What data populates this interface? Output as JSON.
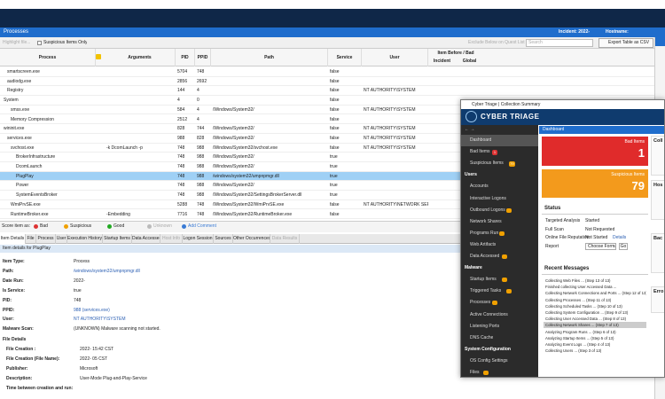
{
  "app": {
    "title": "Processes",
    "incident": "Incident: 2022-",
    "hostname": "Hostname:"
  },
  "toolbar": {
    "highlight": "Highlight file...",
    "suspicious_only": "Suspicious Items Only",
    "exclude": "Exclude Below on Quest List",
    "search": "Search",
    "export": "Export Table as CSV"
  },
  "table": {
    "columns": [
      "Process",
      "Arguments",
      "PID",
      "PPID",
      "Path",
      "Service",
      "User"
    ],
    "group": "Item Before / Bad",
    "subcolumns": [
      "Incident",
      "Global"
    ],
    "rows": [
      [
        "smartscreen.exe",
        "",
        "5704",
        "748",
        "",
        "false",
        ""
      ],
      [
        "audiodg.exe",
        "",
        "2856",
        "2692",
        "",
        "false",
        ""
      ],
      [
        "Registry",
        "",
        "144",
        "4",
        "",
        "false",
        "NT AUTHORITY\\SYSTEM"
      ],
      [
        "System",
        "",
        "4",
        "0",
        "",
        "false",
        ""
      ],
      [
        "smss.exe",
        "",
        "584",
        "4",
        "/Windows/System32/",
        "false",
        "NT AUTHORITY\\SYSTEM"
      ],
      [
        "Memory Compression",
        "",
        "2512",
        "4",
        "",
        "false",
        ""
      ],
      [
        "wininit.exe",
        "",
        "828",
        "744",
        "/Windows/System32/",
        "false",
        "NT AUTHORITY\\SYSTEM"
      ],
      [
        "services.exe",
        "",
        "988",
        "828",
        "/Windows/System32/",
        "false",
        "NT AUTHORITY\\SYSTEM"
      ],
      [
        "svchost.exe",
        "-k DcomLaunch -p",
        "748",
        "988",
        "/Windows/System32/svchost.exe",
        "false",
        "NT AUTHORITY\\SYSTEM"
      ],
      [
        "BrokerInfrastructure",
        "",
        "748",
        "988",
        "/Windows/System32/",
        "true",
        ""
      ],
      [
        "DcomLaunch",
        "",
        "748",
        "988",
        "/Windows/System32/",
        "true",
        ""
      ],
      [
        "PlugPlay",
        "",
        "748",
        "988",
        "/windows/system32/umpnpmgr.dll",
        "true",
        ""
      ],
      [
        "Power",
        "",
        "748",
        "988",
        "/Windows/System32/",
        "true",
        ""
      ],
      [
        "SystemEventsBroker",
        "",
        "748",
        "988",
        "/Windows/System32/SettingsBrokerServer.dll",
        "true",
        ""
      ],
      [
        "WmiPrvSE.exe",
        "",
        "5288",
        "748",
        "/Windows/System32/WmiPrvSE.exe",
        "false",
        "NT AUTHORITY\\NETWORK SER..."
      ],
      [
        "RuntimeBroker.exe",
        "-Embedding",
        "7716",
        "748",
        "/Windows/System32/RuntimeBroker.exe",
        "false",
        ""
      ]
    ]
  },
  "score_bar": {
    "label": "Score item as:",
    "bad": "Bad",
    "suspicious": "Suspicious",
    "good": "Good",
    "unknown": "Unknown",
    "comment": "Add Comment"
  },
  "tabs": [
    "Item Details",
    "File",
    "Process",
    "User",
    "Execution History",
    "Startup Items",
    "Data Accessed",
    "Host Info",
    "Logon Session",
    "Sources",
    "Other Occurrences",
    "Data Results"
  ],
  "details": {
    "header": "Item details for PlugPlay",
    "fields": [
      [
        "Item Type:",
        "Process"
      ],
      [
        "Path:",
        "/windows/system32/umpnpmgr.dll"
      ],
      [
        "Date Run:",
        "2022-"
      ],
      [
        "Is Service:",
        "true"
      ],
      [
        "PID:",
        "748"
      ],
      [
        "PPID:",
        "988 (services.exe)"
      ],
      [
        "User:",
        "NT AUTHORITY\\SYSTEM"
      ],
      [
        "Malware Scan:",
        "(UNKNOWN) Malware scanning not started."
      ]
    ],
    "section": "File Details",
    "file_fields": [
      [
        "File Creation :",
        "2022- 15:42 CST"
      ],
      [
        "File Creation (File Name):",
        "2022- 05 CST"
      ],
      [
        "Publisher:",
        "Microsoft"
      ],
      [
        "Description:",
        "User-Mode Plug-and-Play-Service"
      ],
      [
        "Time between creation and run:",
        ""
      ]
    ]
  },
  "summary": {
    "window_title": "Cyber Triage | Collection Summary",
    "logo": "CYBER TRIAGE",
    "page": "Dashboard",
    "nav": [
      {
        "label": "Dashboard"
      },
      {
        "label": "Bad Items",
        "badge": "1"
      },
      {
        "label": "Suspicious Items",
        "badge": "79"
      },
      {
        "section": "Users"
      },
      {
        "label": "Accounts"
      },
      {
        "label": "Interactive Logons"
      },
      {
        "label": "Outbound Logons"
      },
      {
        "label": "Network Shares"
      },
      {
        "label": "Programs Run"
      },
      {
        "label": "Web Artifacts"
      },
      {
        "label": "Data Accessed"
      },
      {
        "section": "Malware"
      },
      {
        "label": "Startup Items"
      },
      {
        "label": "Triggered Tasks"
      },
      {
        "label": "Processes"
      },
      {
        "label": "Active Connections"
      },
      {
        "label": "Listening Ports"
      },
      {
        "label": "DNS Cache"
      },
      {
        "section": "System Configuration"
      },
      {
        "label": "OS Config Settings"
      },
      {
        "label": "Files"
      }
    ],
    "bad": {
      "label": "Bad Items",
      "count": "1"
    },
    "suspicious": {
      "label": "Suspicious Items",
      "count": "79"
    },
    "status": {
      "title": "Status",
      "rows": [
        [
          "Targeted Analysis",
          "Started"
        ],
        [
          "Full Scan",
          "Not Requested"
        ],
        [
          "Online File Reputation",
          "Not Started"
        ],
        [
          "Report",
          ""
        ]
      ],
      "details": "Details",
      "format": "Choose Format",
      "go": "Go"
    },
    "messages": {
      "title": "Recent Messages",
      "items": [
        "Collecting Web Files ... (Step 13 of 13)",
        "Finished collecting User Accessed Data ...",
        "Collecting Network Connections and Ports ... (Step 12 of 13)",
        "Collecting Processes ... (Step 11 of 13)",
        "Collecting Scheduled Tasks ... (Step 10 of 13)",
        "Collecting System Configuration ... (Step 9 of 13)",
        "Collecting User Accessed Data ... (Step 8 of 13)",
        "Collecting Network Shares ... (Step 7 of 13)",
        "Analyzing Program Runs ... (Step 6 of 13)",
        "Analyzing Startup Items ... (Step 5 of 13)",
        "Analyzing Event Logs ... (Step 4 of 13)",
        "Collecting Users ... (Step 3 of 13)"
      ]
    },
    "side": [
      "Coll",
      "Hos",
      "Bac",
      "Erro"
    ]
  }
}
